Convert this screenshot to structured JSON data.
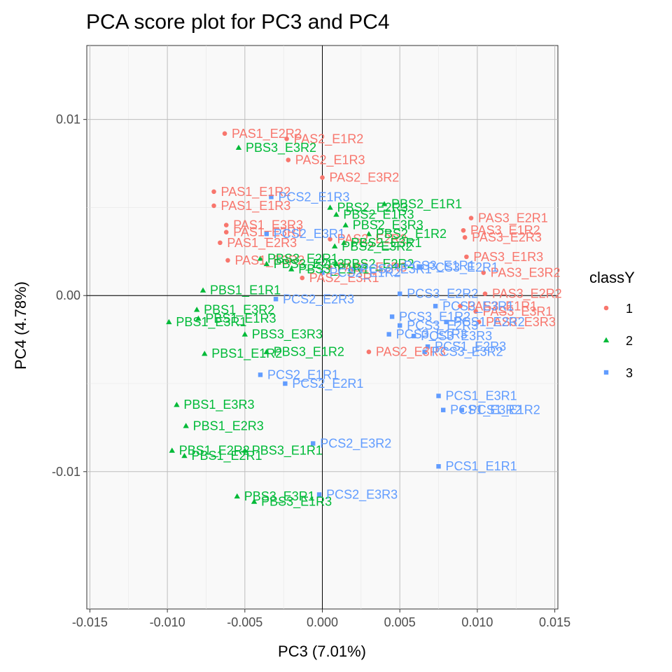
{
  "chart_data": {
    "type": "scatter",
    "title": "PCA score plot for PC3 and PC4",
    "xlabel": "PC3 (7.01%)",
    "ylabel": "PC4 (4.78%)",
    "xlim": [
      -0.0152,
      0.0152
    ],
    "ylim": [
      -0.0178,
      0.0142
    ],
    "x_ticks": [
      -0.015,
      -0.01,
      -0.005,
      0.0,
      0.005,
      0.01,
      0.015
    ],
    "x_tick_labels": [
      "-0.015",
      "-0.010",
      "-0.005",
      "0.000",
      "0.005",
      "0.010",
      "0.015"
    ],
    "y_ticks": [
      0.01,
      0.0,
      -0.01
    ],
    "y_tick_labels": [
      "0.01",
      "0.00",
      "-0.01"
    ],
    "reference_lines": {
      "x": 0,
      "y": 0
    },
    "grid": true,
    "legend": {
      "title": "classY",
      "placement": "right",
      "entries": [
        {
          "label": "1",
          "color": "#F8766D",
          "shape": "circle"
        },
        {
          "label": "2",
          "color": "#00BA38",
          "shape": "triangle"
        },
        {
          "label": "3",
          "color": "#619CFF",
          "shape": "square"
        }
      ]
    },
    "series": [
      {
        "class": "1",
        "color": "#F8766D",
        "shape": "circle",
        "points": [
          {
            "label": "PAS1_E2R2",
            "x": -0.0063,
            "y": 0.0092
          },
          {
            "label": "PAS2_E1R2",
            "x": -0.0023,
            "y": 0.0089
          },
          {
            "label": "PAS2_E1R3",
            "x": -0.0022,
            "y": 0.0077
          },
          {
            "label": "PAS2_E3R2",
            "x": 0.0,
            "y": 0.0067
          },
          {
            "label": "PAS1_E1R2",
            "x": -0.007,
            "y": 0.0059
          },
          {
            "label": "PAS1_E1R3",
            "x": -0.007,
            "y": 0.0051
          },
          {
            "label": "PAS1_E3R3",
            "x": -0.0062,
            "y": 0.004
          },
          {
            "label": "PAS1_E3R1",
            "x": -0.0062,
            "y": 0.0036
          },
          {
            "label": "PAS1_E2R3",
            "x": -0.0066,
            "y": 0.003
          },
          {
            "label": "PAS1_E3R2",
            "x": -0.0061,
            "y": 0.002
          },
          {
            "label": "PAS2_E3R1",
            "x": -0.0013,
            "y": 0.001
          },
          {
            "label": "PAS2_E2R3",
            "x": 0.0005,
            "y": 0.0016
          },
          {
            "label": "PAS2_E2R2",
            "x": 0.0005,
            "y": 0.0032
          },
          {
            "label": "PAS2_E3R3",
            "x": 0.003,
            "y": -0.0032
          },
          {
            "label": "PAS3_E2R1",
            "x": 0.0096,
            "y": 0.0044
          },
          {
            "label": "PAS3_E1R2",
            "x": 0.0091,
            "y": 0.0037
          },
          {
            "label": "PAS3_E2R3",
            "x": 0.0092,
            "y": 0.0033
          },
          {
            "label": "PAS3_E1R3",
            "x": 0.0093,
            "y": 0.0022
          },
          {
            "label": "PAS3_E3R2",
            "x": 0.0104,
            "y": 0.0013
          },
          {
            "label": "PAS3_E2R2",
            "x": 0.0105,
            "y": 0.0001
          },
          {
            "label": "PAS3_E1R1",
            "x": 0.0089,
            "y": -0.0006
          },
          {
            "label": "PAS3_E3R1",
            "x": 0.0099,
            "y": -0.0009
          },
          {
            "label": "PAS3_E3R3",
            "x": 0.0101,
            "y": -0.0015
          }
        ]
      },
      {
        "class": "2",
        "color": "#00BA38",
        "shape": "triangle",
        "points": [
          {
            "label": "PBS3_E3R2",
            "x": -0.0054,
            "y": 0.0084
          },
          {
            "label": "PBS2_E1R1",
            "x": 0.004,
            "y": 0.0052
          },
          {
            "label": "PBS2_E2R3",
            "x": 0.0005,
            "y": 0.005
          },
          {
            "label": "PBS2_E1R3",
            "x": 0.0009,
            "y": 0.0046
          },
          {
            "label": "PBS2_E3R3",
            "x": 0.0015,
            "y": 0.004
          },
          {
            "label": "PBS2_E1R2",
            "x": 0.003,
            "y": 0.0035
          },
          {
            "label": "PBS2_E3R1",
            "x": 0.0014,
            "y": 0.003
          },
          {
            "label": "PBS2_E3R2",
            "x": 0.0008,
            "y": 0.0028
          },
          {
            "label": "PBS2_E2R2",
            "x": 0.0009,
            "y": 0.0018
          },
          {
            "label": "PBS3_E2R1",
            "x": -0.004,
            "y": 0.0021
          },
          {
            "label": "PBS3_E2R3",
            "x": -0.0036,
            "y": 0.0018
          },
          {
            "label": "PBS3_E1R1",
            "x": -0.002,
            "y": 0.0015
          },
          {
            "label": "PBS1_E1R1",
            "x": -0.0077,
            "y": 0.0003
          },
          {
            "label": "PBS1_E3R2",
            "x": -0.0081,
            "y": -0.0008
          },
          {
            "label": "PBS1_E1R3",
            "x": -0.008,
            "y": -0.0013
          },
          {
            "label": "PBS1_E3R1",
            "x": -0.0099,
            "y": -0.0015
          },
          {
            "label": "PBS3_E3R3",
            "x": -0.005,
            "y": -0.0022
          },
          {
            "label": "PBS1_E1R2",
            "x": -0.0076,
            "y": -0.0033
          },
          {
            "label": "PBS3_E1R2",
            "x": -0.0036,
            "y": -0.0032
          },
          {
            "label": "PBS1_E3R3",
            "x": -0.0094,
            "y": -0.0062
          },
          {
            "label": "PBS1_E2R3",
            "x": -0.0088,
            "y": -0.0074
          },
          {
            "label": "PBS1_E2R2",
            "x": -0.0097,
            "y": -0.0088
          },
          {
            "label": "PBS3_E1R1",
            "x": -0.005,
            "y": -0.0088
          },
          {
            "label": "PBS1_E2R1",
            "x": -0.0089,
            "y": -0.0091
          },
          {
            "label": "PBS3_E3R1",
            "x": -0.0055,
            "y": -0.0114
          },
          {
            "label": "PBS3_E1R3",
            "x": -0.0044,
            "y": -0.0117
          }
        ]
      },
      {
        "class": "3",
        "color": "#619CFF",
        "shape": "square",
        "points": [
          {
            "label": "PCS2_E1R3",
            "x": -0.0033,
            "y": 0.0056
          },
          {
            "label": "PCS2_E3R1",
            "x": -0.0036,
            "y": 0.0035
          },
          {
            "label": "PCS2_E2R3",
            "x": -0.003,
            "y": -0.0002
          },
          {
            "label": "PCS2_E1R2",
            "x": 0.0,
            "y": 0.0013
          },
          {
            "label": "PCS2_E3R1",
            "x": 0.002,
            "y": 0.0015
          },
          {
            "label": "PCS2_E1R1",
            "x": -0.004,
            "y": -0.0045
          },
          {
            "label": "PCS2_E2R1",
            "x": -0.0024,
            "y": -0.005
          },
          {
            "label": "PCS2_E3R2",
            "x": -0.0006,
            "y": -0.0084
          },
          {
            "label": "PCS2_E3R3",
            "x": -0.0002,
            "y": -0.0113
          },
          {
            "label": "PCS3_E1R1",
            "x": 0.0048,
            "y": 0.0017
          },
          {
            "label": "PCS3_E2R1",
            "x": 0.0063,
            "y": 0.0016
          },
          {
            "label": "PCS3_E2R2",
            "x": 0.005,
            "y": 0.0001
          },
          {
            "label": "PCS3_E3R1",
            "x": 0.0073,
            "y": -0.0006
          },
          {
            "label": "PCS3_E1R2",
            "x": 0.0045,
            "y": -0.0012
          },
          {
            "label": "PCS3_E2R3",
            "x": 0.005,
            "y": -0.0017
          },
          {
            "label": "PCS3_E1R3",
            "x": 0.0043,
            "y": -0.0022
          },
          {
            "label": "PCS3_E3R3",
            "x": 0.0059,
            "y": -0.0023
          },
          {
            "label": "PCS3_E3R2",
            "x": 0.0066,
            "y": -0.0032
          },
          {
            "label": "PCS1_E2R2",
            "x": 0.008,
            "y": -0.0015
          },
          {
            "label": "PCS1_E2R3",
            "x": 0.0068,
            "y": -0.0029
          },
          {
            "label": "PCS1_E3R1",
            "x": 0.0075,
            "y": -0.0057
          },
          {
            "label": "PCS1_E3R2",
            "x": 0.0078,
            "y": -0.0065
          },
          {
            "label": "PCS1_E1R2",
            "x": 0.009,
            "y": -0.0065
          },
          {
            "label": "PCS1_E1R1",
            "x": 0.0075,
            "y": -0.0097
          }
        ]
      }
    ]
  }
}
